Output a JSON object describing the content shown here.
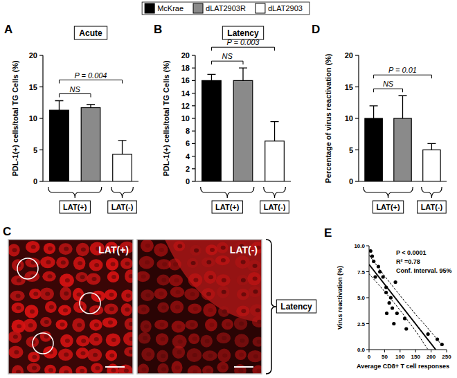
{
  "chart_data": [
    {
      "panel": "A",
      "type": "bar",
      "title": "Acute",
      "y_label": "PDL-1(+) cells/total TG Cells (%)",
      "categories": [
        null
      ],
      "legend": "top",
      "tick_labels": "y",
      "ylim": [
        0,
        20
      ],
      "yticks": [
        0,
        5,
        10,
        15,
        20
      ],
      "series": [
        {
          "name": "McKrae",
          "color": "#000000",
          "values": [
            11.3
          ],
          "errors": [
            1.5
          ]
        },
        {
          "name": "dLAT2903R",
          "color": "#8a8a8a",
          "values": [
            11.7
          ],
          "errors": [
            0.5
          ]
        },
        {
          "name": "dLAT2903",
          "color": "#ffffff",
          "values": [
            4.3
          ],
          "errors": [
            2.2
          ]
        }
      ],
      "groups": [
        {
          "label": "LAT(+)",
          "size": 2
        },
        {
          "label": "LAT(-)",
          "size": 1
        }
      ],
      "annotations": [
        {
          "text": "NS",
          "from": 0,
          "to": 1
        },
        {
          "text": "P = 0.004",
          "from": 0,
          "to": 2
        }
      ]
    },
    {
      "panel": "B",
      "type": "bar",
      "title": "Latency",
      "y_label": "PDL-1(+) cells/total TG Cells (%)",
      "categories": [
        null
      ],
      "tick_labels": "y",
      "ylim": [
        0,
        20
      ],
      "yticks": [
        0,
        2,
        4,
        6,
        8,
        10,
        12,
        14,
        16,
        18,
        20
      ],
      "series": [
        {
          "color": "#000000",
          "values": [
            16.0
          ],
          "errors": [
            1.0
          ]
        },
        {
          "color": "#8a8a8a",
          "values": [
            16.0
          ],
          "errors": [
            2.0
          ]
        },
        {
          "color": "#ffffff",
          "values": [
            6.4
          ],
          "errors": [
            3.1
          ]
        }
      ],
      "groups": [
        {
          "label": "LAT(+)",
          "size": 2
        },
        {
          "label": "LAT(-)",
          "size": 1
        }
      ],
      "annotations": [
        {
          "text": "NS",
          "from": 0,
          "to": 1
        },
        {
          "text": "P = 0.003",
          "from": 0,
          "to": 2
        }
      ]
    },
    {
      "panel": "D",
      "type": "bar",
      "y_label": "Percentage of virus reactivation (%)",
      "categories": [
        null
      ],
      "tick_labels": "y",
      "ylim": [
        0,
        20
      ],
      "yticks": [
        0,
        5,
        10,
        15,
        20
      ],
      "series": [
        {
          "color": "#000000",
          "values": [
            10.0
          ],
          "errors": [
            2.0
          ]
        },
        {
          "color": "#8a8a8a",
          "values": [
            10.0
          ],
          "errors": [
            3.6
          ]
        },
        {
          "color": "#ffffff",
          "values": [
            5.0
          ],
          "errors": [
            1.0
          ]
        }
      ],
      "groups": [
        {
          "label": "LAT(+)",
          "size": 2
        },
        {
          "label": "LAT(-)",
          "size": 1
        }
      ],
      "annotations": [
        {
          "text": "NS",
          "from": 0,
          "to": 1
        },
        {
          "text": "P = 0.01",
          "from": 0,
          "to": 2
        }
      ]
    },
    {
      "panel": "E",
      "type": "scatter",
      "x_label": "Average CD8+ T cell responses",
      "y_label": "Virus reactivation (%)",
      "xlim": [
        0,
        250
      ],
      "xticks": [
        0,
        50,
        100,
        150,
        200,
        250
      ],
      "ylim": [
        0,
        10
      ],
      "yticks": [
        {
          "value": 0,
          "label": "0.0"
        },
        {
          "value": 2.5,
          "label": "2.5"
        },
        {
          "value": 5,
          "label": "5.0"
        },
        {
          "value": 7.5,
          "label": "7.5"
        },
        {
          "value": 10,
          "label": "10.0"
        }
      ],
      "annotations": [
        "P < 0.0001",
        "R² =0.78",
        "Conf. Interval. 95%"
      ],
      "series": [
        {
          "type": "scatter",
          "color": "#000000",
          "marker": "circle",
          "x": [
            5,
            10,
            15,
            20,
            30,
            35,
            45,
            55,
            55,
            57,
            65,
            70,
            75,
            85,
            80,
            90,
            115,
            120,
            190,
            220,
            235
          ],
          "values": [
            9.5,
            9.0,
            8.5,
            7.0,
            8.0,
            7.5,
            7.0,
            6.0,
            5.5,
            3.5,
            4.5,
            5.0,
            4.0,
            6.5,
            2.5,
            3.5,
            3.0,
            2.0,
            1.5,
            1.0,
            0.5
          ]
        },
        {
          "type": "line",
          "color": "#000000",
          "line_style": "solid",
          "x": [
            0,
            215
          ],
          "values": [
            8.2,
            0
          ]
        },
        {
          "type": "line",
          "color": "#000000",
          "line_style": "dashed",
          "x": [
            0,
            50,
            100,
            150,
            200,
            230
          ],
          "values": [
            9.1,
            7.1,
            5.2,
            3.4,
            1.7,
            0.6
          ]
        },
        {
          "type": "line",
          "color": "#000000",
          "line_style": "dashed",
          "x": [
            0,
            50,
            100,
            150,
            190
          ],
          "values": [
            7.3,
            5.6,
            3.8,
            1.8,
            0
          ]
        }
      ]
    }
  ],
  "images": {
    "panel": "C",
    "label": "Latency",
    "items": [
      "LAT(+)",
      "LAT(-)"
    ]
  }
}
